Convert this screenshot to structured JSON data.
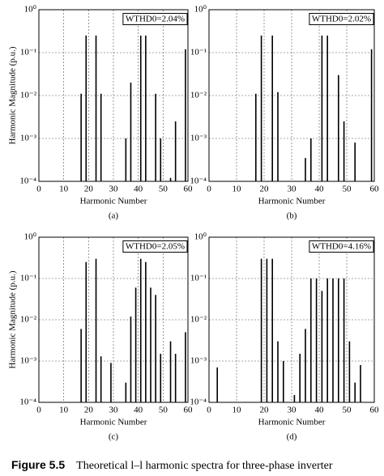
{
  "chart_data": [
    {
      "type": "bar",
      "x": [
        17,
        19,
        23,
        25,
        35,
        37,
        41,
        43,
        47,
        49,
        53,
        55,
        59
      ],
      "values": [
        0.011,
        0.25,
        0.25,
        0.011,
        0.001,
        0.02,
        0.25,
        0.25,
        0.011,
        0.001,
        0.00012,
        0.0025,
        0.12
      ],
      "color": "#000000",
      "xlim": [
        0,
        60
      ],
      "xticks": [
        0,
        10,
        20,
        30,
        40,
        50,
        60
      ],
      "ylim": [
        0.0001,
        1
      ],
      "yscale": "log",
      "yticks": [
        {
          "value": 0.0001,
          "label": "10⁻⁴"
        },
        {
          "value": 0.001,
          "label": "10⁻³"
        },
        {
          "value": 0.01,
          "label": "10⁻²"
        },
        {
          "value": 0.1,
          "label": "10⁻¹"
        },
        {
          "value": 1,
          "label": "10⁰"
        }
      ],
      "grid": true,
      "xlabel": "Harmonic Number",
      "ylabel": "Harmonic Magnitude (p.u.)",
      "annotation": "WTHD0=2.04%",
      "label": "(a)"
    },
    {
      "type": "bar",
      "x": [
        17,
        19,
        23,
        25,
        35,
        37,
        41,
        43,
        47,
        49,
        53,
        59
      ],
      "values": [
        0.011,
        0.25,
        0.25,
        0.012,
        0.00035,
        0.001,
        0.25,
        0.25,
        0.03,
        0.0025,
        0.0008,
        0.12
      ],
      "color": "#000000",
      "xlim": [
        0,
        60
      ],
      "xticks": [
        0,
        10,
        20,
        30,
        40,
        50,
        60
      ],
      "ylim": [
        0.0001,
        1
      ],
      "yscale": "log",
      "yticks": [
        {
          "value": 0.0001,
          "label": "10⁻⁴"
        },
        {
          "value": 0.001,
          "label": "10⁻³"
        },
        {
          "value": 0.01,
          "label": "10⁻²"
        },
        {
          "value": 0.1,
          "label": "10⁻¹"
        },
        {
          "value": 1,
          "label": "10⁰"
        }
      ],
      "grid": true,
      "xlabel": "Harmonic Number",
      "annotation": "WTHD0=2.02%",
      "label": "(b)"
    },
    {
      "type": "bar",
      "x": [
        17,
        19,
        23,
        25,
        29,
        35,
        37,
        39,
        41,
        43,
        45,
        47,
        49,
        53,
        55,
        59
      ],
      "values": [
        0.006,
        0.25,
        0.3,
        0.0013,
        0.0009,
        0.0003,
        0.012,
        0.06,
        0.3,
        0.25,
        0.06,
        0.04,
        0.0015,
        0.003,
        0.0015,
        0.005
      ],
      "color": "#000000",
      "xlim": [
        0,
        60
      ],
      "xticks": [
        0,
        10,
        20,
        30,
        40,
        50,
        60
      ],
      "ylim": [
        0.0001,
        1
      ],
      "yscale": "log",
      "yticks": [
        {
          "value": 0.0001,
          "label": "10⁻⁴"
        },
        {
          "value": 0.001,
          "label": "10⁻³"
        },
        {
          "value": 0.01,
          "label": "10⁻²"
        },
        {
          "value": 0.1,
          "label": "10⁻¹"
        },
        {
          "value": 1,
          "label": "10⁰"
        }
      ],
      "grid": true,
      "xlabel": "Harmonic Number",
      "ylabel": "Harmonic Magnitude (p.u.)",
      "annotation": "WTHD0=2.05%",
      "label": "(c)"
    },
    {
      "type": "bar",
      "x": [
        3,
        19,
        21,
        23,
        25,
        27,
        29,
        31,
        33,
        35,
        37,
        39,
        41,
        43,
        45,
        47,
        49,
        51,
        53,
        55
      ],
      "values": [
        0.0007,
        0.3,
        0.3,
        0.3,
        0.003,
        0.001,
        0.0001,
        0.00015,
        0.0015,
        0.006,
        0.1,
        0.1,
        0.05,
        0.1,
        0.1,
        0.1,
        0.1,
        0.003,
        0.0003,
        0.0008
      ],
      "color": "#000000",
      "xlim": [
        0,
        60
      ],
      "xticks": [
        0,
        10,
        20,
        30,
        40,
        50,
        60
      ],
      "ylim": [
        0.0001,
        1
      ],
      "yscale": "log",
      "yticks": [
        {
          "value": 0.0001,
          "label": "10⁻⁴"
        },
        {
          "value": 0.001,
          "label": "10⁻³"
        },
        {
          "value": 0.01,
          "label": "10⁻²"
        },
        {
          "value": 0.1,
          "label": "10⁻¹"
        },
        {
          "value": 1,
          "label": "10⁰"
        }
      ],
      "grid": true,
      "xlabel": "Harmonic Number",
      "annotation": "WTHD0=4.16%",
      "label": "(d)"
    }
  ],
  "caption": {
    "label": "Figure 5.5",
    "text": "Theoretical l–l harmonic spectra for three-phase inverter"
  }
}
